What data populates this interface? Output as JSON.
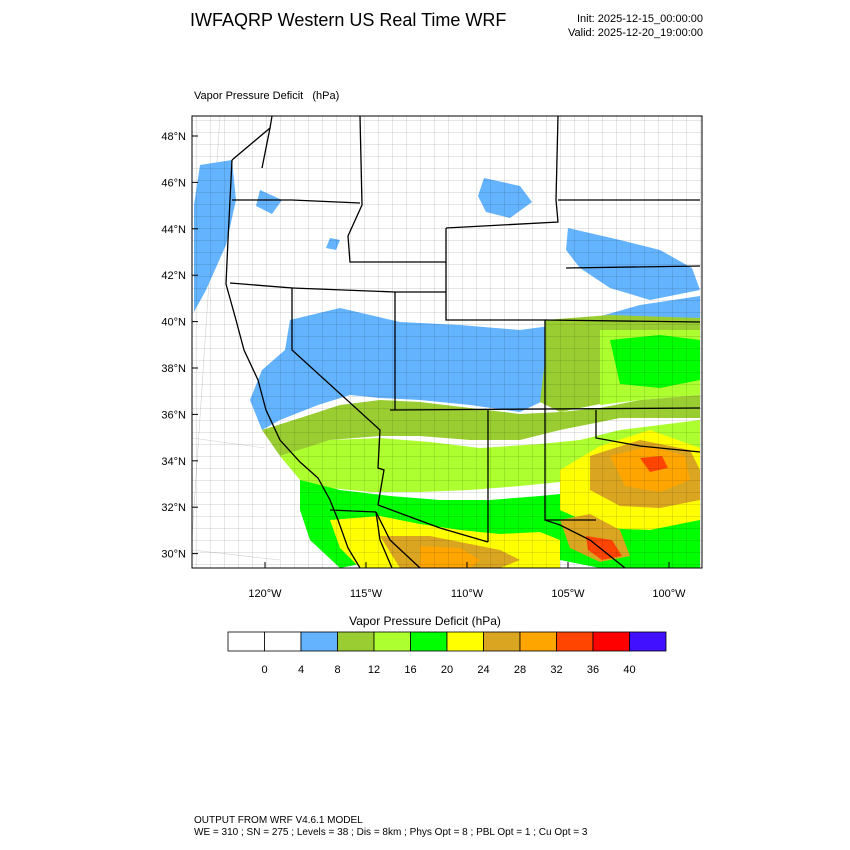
{
  "header": {
    "title": "IWFAQRP Western US Real Time WRF",
    "init": "Init: 2025-12-15_00:00:00",
    "valid": "Valid: 2025-12-20_19:00:00"
  },
  "map": {
    "field_label": "Vapor Pressure Deficit   (hPa)",
    "lat_labels": [
      "48°N",
      "46°N",
      "44°N",
      "42°N",
      "40°N",
      "38°N",
      "36°N",
      "34°N",
      "32°N",
      "30°N"
    ],
    "lon_labels": [
      "120°W",
      "115°W",
      "110°W",
      "105°W",
      "100°W"
    ]
  },
  "colorbar": {
    "title": "Vapor Pressure Deficit  (hPa)",
    "levels": [
      "0",
      "4",
      "8",
      "12",
      "16",
      "20",
      "24",
      "28",
      "32",
      "36",
      "40"
    ],
    "colors": [
      "#ffffff",
      "#ffffff",
      "#63b3ff",
      "#9acd32",
      "#adff2f",
      "#00ff00",
      "#ffff00",
      "#daa520",
      "#ffa500",
      "#ff4500",
      "#ff0000",
      "#4010ff"
    ]
  },
  "footer": {
    "line1": "OUTPUT FROM WRF V4.6.1 MODEL",
    "line2": "WE = 310 ; SN = 275 ; Levels = 38 ; Dis = 8km ; Phys Opt = 8 ; PBL Opt = 1 ; Cu Opt = 3"
  }
}
